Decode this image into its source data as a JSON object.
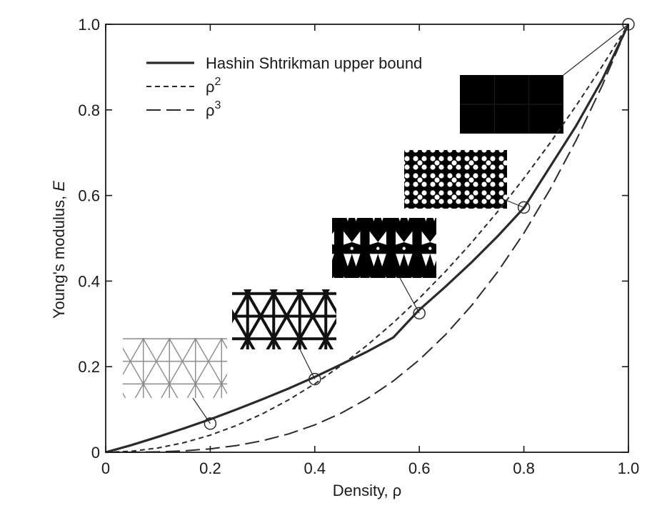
{
  "chart_data": {
    "type": "line",
    "xlabel": "Density, ρ",
    "ylabel_main": "Young's modulus, ",
    "ylabel_italic": "E",
    "xlim": [
      0,
      1.0
    ],
    "ylim": [
      0,
      1.0
    ],
    "xticks": [
      0,
      0.2,
      0.4,
      0.6,
      0.8,
      1.0
    ],
    "xtick_labels": [
      "0",
      "0.2",
      "0.4",
      "0.6",
      "0.8",
      "1.0"
    ],
    "yticks": [
      0,
      0.2,
      0.4,
      0.6,
      0.8,
      1.0
    ],
    "ytick_labels": [
      "0",
      "0.2",
      "0.4",
      "0.6",
      "0.8",
      "1.0"
    ],
    "legend_position": "top-left",
    "series": [
      {
        "name": "Hashin Shtrikman upper bound",
        "style": "solid",
        "x": [
          0,
          0.05,
          0.1,
          0.15,
          0.2,
          0.25,
          0.3,
          0.35,
          0.4,
          0.45,
          0.5,
          0.55,
          0.6,
          0.65,
          0.7,
          0.75,
          0.8,
          0.85,
          0.9,
          0.95,
          1.0
        ],
        "y": [
          0,
          0.017,
          0.036,
          0.056,
          0.077,
          0.1,
          0.124,
          0.149,
          0.176,
          0.205,
          0.235,
          0.268,
          0.333,
          0.387,
          0.444,
          0.505,
          0.571,
          0.667,
          0.763,
          0.871,
          1.0
        ]
      },
      {
        "name": "ρ2",
        "name_base": "ρ",
        "name_sup": "2",
        "style": "short-dash",
        "x": [
          0,
          0.05,
          0.1,
          0.15,
          0.2,
          0.25,
          0.3,
          0.35,
          0.4,
          0.45,
          0.5,
          0.55,
          0.6,
          0.65,
          0.7,
          0.75,
          0.8,
          0.85,
          0.9,
          0.95,
          1.0
        ],
        "y": [
          0,
          0.0025,
          0.01,
          0.0225,
          0.04,
          0.0625,
          0.09,
          0.1225,
          0.16,
          0.2025,
          0.25,
          0.3025,
          0.36,
          0.4225,
          0.49,
          0.5625,
          0.64,
          0.7225,
          0.81,
          0.9025,
          1.0
        ]
      },
      {
        "name": "ρ3",
        "name_base": "ρ",
        "name_sup": "3",
        "style": "long-dash",
        "x": [
          0,
          0.05,
          0.1,
          0.15,
          0.2,
          0.25,
          0.3,
          0.35,
          0.4,
          0.45,
          0.5,
          0.55,
          0.6,
          0.65,
          0.7,
          0.75,
          0.8,
          0.85,
          0.9,
          0.95,
          1.0
        ],
        "y": [
          0,
          0.000125,
          0.001,
          0.003375,
          0.008,
          0.015625,
          0.027,
          0.042875,
          0.064,
          0.091125,
          0.125,
          0.166375,
          0.216,
          0.274625,
          0.343,
          0.421875,
          0.512,
          0.614125,
          0.729,
          0.857375,
          1.0
        ]
      }
    ],
    "markers": [
      {
        "x": 0.2,
        "y": 0.067
      },
      {
        "x": 0.4,
        "y": 0.171
      },
      {
        "x": 0.6,
        "y": 0.325
      },
      {
        "x": 0.8,
        "y": 0.572
      },
      {
        "x": 1.0,
        "y": 1.0
      }
    ],
    "insets": [
      {
        "density": 0.2,
        "kind": "thin-lattice",
        "pattern": "triangular-lattice",
        "color": "#9a9a9a"
      },
      {
        "density": 0.4,
        "kind": "medium-lattice",
        "pattern": "triangular-lattice",
        "color": "#111111"
      },
      {
        "density": 0.6,
        "kind": "thick-lattice",
        "pattern": "star-lattice",
        "color": "#000000"
      },
      {
        "density": 0.8,
        "kind": "dense-lattice",
        "pattern": "perforated",
        "color": "#000000"
      },
      {
        "density": 1.0,
        "kind": "solid",
        "pattern": "solid-block",
        "color": "#000000"
      }
    ],
    "colors": {
      "line": "#2a2a2d",
      "axis": "#1a1a1a"
    }
  }
}
